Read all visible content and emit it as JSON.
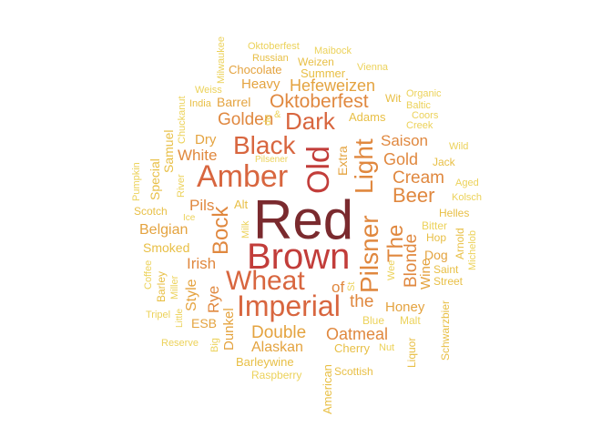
{
  "palette": {
    "darkest": "#7a2a2e",
    "dark": "#c23d3a",
    "mid": "#d8663f",
    "warm": "#e0883f",
    "orange": "#e4a33f",
    "gold": "#e8bf45",
    "light": "#ecd25a"
  },
  "words": [
    {
      "text": "Red"
    },
    {
      "text": "Brown"
    },
    {
      "text": "Amber"
    },
    {
      "text": "Old"
    },
    {
      "text": "Light"
    },
    {
      "text": "Pilsner"
    },
    {
      "text": "Imperial"
    },
    {
      "text": "Wheat"
    },
    {
      "text": "Black"
    },
    {
      "text": "Dark"
    },
    {
      "text": "Bock"
    },
    {
      "text": "The"
    },
    {
      "text": "Beer"
    },
    {
      "text": "Cream"
    },
    {
      "text": "Oktoberfest"
    },
    {
      "text": "Golden"
    },
    {
      "text": "Hefeweizen"
    },
    {
      "text": "Saison"
    },
    {
      "text": "Gold"
    },
    {
      "text": "Blonde"
    },
    {
      "text": "Double"
    },
    {
      "text": "Oatmeal"
    },
    {
      "text": "Alaskan"
    },
    {
      "text": "Honey"
    },
    {
      "text": "the"
    },
    {
      "text": "Belgian"
    },
    {
      "text": "Irish"
    },
    {
      "text": "Rye"
    },
    {
      "text": "Style"
    },
    {
      "text": "Pils"
    },
    {
      "text": "White"
    },
    {
      "text": "Heavy"
    },
    {
      "text": "Barrel"
    },
    {
      "text": "Dry"
    },
    {
      "text": "Extra"
    },
    {
      "text": "Dunkel"
    },
    {
      "text": "ESB"
    },
    {
      "text": "Wine"
    },
    {
      "text": "of"
    },
    {
      "text": "Dog"
    },
    {
      "text": "Smoked"
    },
    {
      "text": "Special"
    },
    {
      "text": "Samuel"
    },
    {
      "text": "Chocolate"
    },
    {
      "text": "Summer"
    },
    {
      "text": "Barleywine"
    },
    {
      "text": "Scotch"
    },
    {
      "text": "Adams"
    },
    {
      "text": "Cherry"
    },
    {
      "text": "Blue"
    },
    {
      "text": "Malt"
    },
    {
      "text": "Helles"
    },
    {
      "text": "Bitter"
    },
    {
      "text": "Hop"
    },
    {
      "text": "Jack"
    },
    {
      "text": "Liquor"
    },
    {
      "text": "American"
    },
    {
      "text": "Raspberry"
    },
    {
      "text": "Scottish"
    },
    {
      "text": "Russian"
    },
    {
      "text": "Weizen"
    },
    {
      "text": "Oktoberfest"
    },
    {
      "text": "Maibock"
    },
    {
      "text": "Vienna"
    },
    {
      "text": "Milwaukee"
    },
    {
      "text": "Weiss"
    },
    {
      "text": "India"
    },
    {
      "text": "Chuckanut"
    },
    {
      "text": "Organic"
    },
    {
      "text": "Baltic"
    },
    {
      "text": "Wit"
    },
    {
      "text": "Coors"
    },
    {
      "text": "Creek"
    },
    {
      "text": "Wild"
    },
    {
      "text": "Aged"
    },
    {
      "text": "Kolsch"
    },
    {
      "text": "Arnold"
    },
    {
      "text": "Michelob"
    },
    {
      "text": "Saint"
    },
    {
      "text": "Street"
    },
    {
      "text": "Schwarzbier"
    },
    {
      "text": "Nut"
    },
    {
      "text": "Wee"
    },
    {
      "text": "St"
    },
    {
      "text": "Reserve"
    },
    {
      "text": "Big"
    },
    {
      "text": "Tripel"
    },
    {
      "text": "Little"
    },
    {
      "text": "Miller"
    },
    {
      "text": "Barley"
    },
    {
      "text": "Coffee"
    },
    {
      "text": "Pumpkin"
    },
    {
      "text": "River"
    },
    {
      "text": "Ice"
    },
    {
      "text": "Alt"
    },
    {
      "text": "Milk"
    },
    {
      "text": "Pilsener"
    },
    {
      "text": "&"
    },
    {
      "text": "de"
    }
  ]
}
